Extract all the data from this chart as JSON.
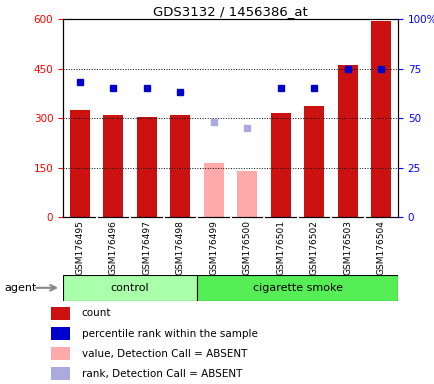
{
  "title": "GDS3132 / 1456386_at",
  "samples": [
    "GSM176495",
    "GSM176496",
    "GSM176497",
    "GSM176498",
    "GSM176499",
    "GSM176500",
    "GSM176501",
    "GSM176502",
    "GSM176503",
    "GSM176504"
  ],
  "counts": [
    325,
    308,
    302,
    308,
    null,
    null,
    315,
    338,
    460,
    595
  ],
  "absent_values": [
    null,
    null,
    null,
    null,
    165,
    140,
    null,
    null,
    null,
    null
  ],
  "percentile_ranks": [
    68,
    65,
    65,
    63,
    null,
    null,
    65,
    65,
    75,
    75
  ],
  "absent_ranks": [
    null,
    null,
    null,
    null,
    48,
    45,
    null,
    null,
    null,
    null
  ],
  "bar_color_present": "#cc1111",
  "bar_color_absent": "#ffaaaa",
  "dot_color_present": "#0000cc",
  "dot_color_absent": "#aaaadd",
  "ylim_left": [
    0,
    600
  ],
  "ylim_right": [
    0,
    100
  ],
  "yticks_left": [
    0,
    150,
    300,
    450,
    600
  ],
  "ytick_labels_left": [
    "0",
    "150",
    "300",
    "450",
    "600"
  ],
  "yticks_right": [
    0,
    25,
    50,
    75,
    100
  ],
  "ytick_labels_right": [
    "0",
    "25",
    "50",
    "75",
    "100%"
  ],
  "control_color": "#aaffaa",
  "smoke_color": "#55ee55",
  "agent_label": "agent",
  "legend_items": [
    {
      "color": "#cc1111",
      "label": "count",
      "marker": "rect"
    },
    {
      "color": "#0000cc",
      "label": "percentile rank within the sample",
      "marker": "square"
    },
    {
      "color": "#ffaaaa",
      "label": "value, Detection Call = ABSENT",
      "marker": "rect"
    },
    {
      "color": "#aaaadd",
      "label": "rank, Detection Call = ABSENT",
      "marker": "square"
    }
  ],
  "n_control": 4,
  "n_total": 10,
  "tick_bg_color": "#dddddd",
  "chart_bg": "white"
}
